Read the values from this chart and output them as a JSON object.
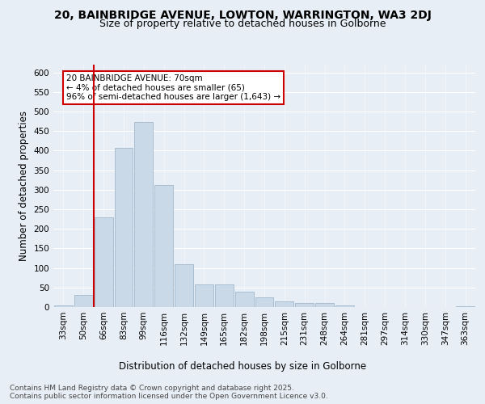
{
  "title1": "20, BAINBRIDGE AVENUE, LOWTON, WARRINGTON, WA3 2DJ",
  "title2": "Size of property relative to detached houses in Golborne",
  "xlabel": "Distribution of detached houses by size in Golborne",
  "ylabel": "Number of detached properties",
  "categories": [
    "33sqm",
    "50sqm",
    "66sqm",
    "83sqm",
    "99sqm",
    "116sqm",
    "132sqm",
    "149sqm",
    "165sqm",
    "182sqm",
    "198sqm",
    "215sqm",
    "231sqm",
    "248sqm",
    "264sqm",
    "281sqm",
    "297sqm",
    "314sqm",
    "330sqm",
    "347sqm",
    "363sqm"
  ],
  "values": [
    5,
    30,
    230,
    407,
    473,
    312,
    110,
    57,
    57,
    40,
    25,
    14,
    10,
    10,
    5,
    0,
    0,
    0,
    0,
    0,
    3
  ],
  "bar_color": "#c9d9e8",
  "bar_edge_color": "#a0b8cc",
  "vline_color": "#cc0000",
  "annotation_box_text": "20 BAINBRIDGE AVENUE: 70sqm\n← 4% of detached houses are smaller (65)\n96% of semi-detached houses are larger (1,643) →",
  "annotation_box_color": "#ffffff",
  "annotation_box_edge_color": "#cc0000",
  "footnote": "Contains HM Land Registry data © Crown copyright and database right 2025.\nContains public sector information licensed under the Open Government Licence v3.0.",
  "ylim": [
    0,
    620
  ],
  "bg_color": "#e8eef5",
  "plot_bg_color": "#e8eef5",
  "title_fontsize": 10,
  "subtitle_fontsize": 9,
  "axis_label_fontsize": 8.5,
  "tick_fontsize": 7.5,
  "footnote_fontsize": 6.5,
  "annotation_fontsize": 7.5
}
